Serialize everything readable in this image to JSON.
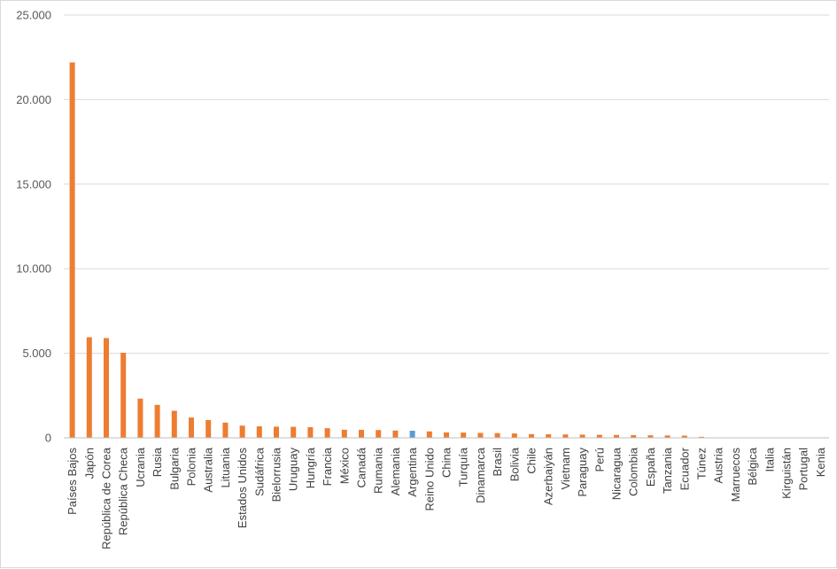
{
  "chart_data": {
    "type": "bar",
    "title": "",
    "xlabel": "",
    "ylabel": "",
    "ylim": [
      0,
      25000
    ],
    "yticks": [
      "0",
      "5.000",
      "10.000",
      "15.000",
      "20.000",
      "25.000"
    ],
    "ytick_values": [
      0,
      5000,
      10000,
      15000,
      20000,
      25000
    ],
    "grid": true,
    "legend": "none",
    "colors": {
      "default": "#ED7D31",
      "highlight": "#5B9BD5",
      "grid": "#d9d9d9",
      "axis": "#bfbfbf"
    },
    "highlight_category": "Argentina",
    "categories": [
      "Países Bajos",
      "Japón",
      "República de Corea",
      "República Checa",
      "Ucrania",
      "Rusia",
      "Bulgaria",
      "Polonia",
      "Australia",
      "Lituania",
      "Estados Unidos",
      "Sudáfrica",
      "Bielorrusia",
      "Uruguay",
      "Hungría",
      "Francia",
      "México",
      "Canadá",
      "Rumania",
      "Alemania",
      "Argentina",
      "Reino Unido",
      "China",
      "Turquía",
      "Dinamarca",
      "Brasil",
      "Bolivia",
      "Chile",
      "Azerbaiyán",
      "Vietnam",
      "Paraguay",
      "Perú",
      "Nicaragua",
      "Colombia",
      "España",
      "Tanzania",
      "Ecuador",
      "Túnez",
      "Austria",
      "Marruecos",
      "Bélgica",
      "Italia",
      "Kirguistán",
      "Portugal",
      "Kenia"
    ],
    "values": [
      22200,
      5950,
      5900,
      5030,
      2320,
      1950,
      1600,
      1200,
      1050,
      900,
      720,
      680,
      660,
      650,
      630,
      570,
      480,
      470,
      460,
      430,
      420,
      380,
      320,
      310,
      290,
      280,
      260,
      220,
      210,
      200,
      190,
      180,
      170,
      160,
      150,
      140,
      130,
      60,
      10,
      8,
      6,
      5,
      4,
      3,
      2
    ]
  }
}
